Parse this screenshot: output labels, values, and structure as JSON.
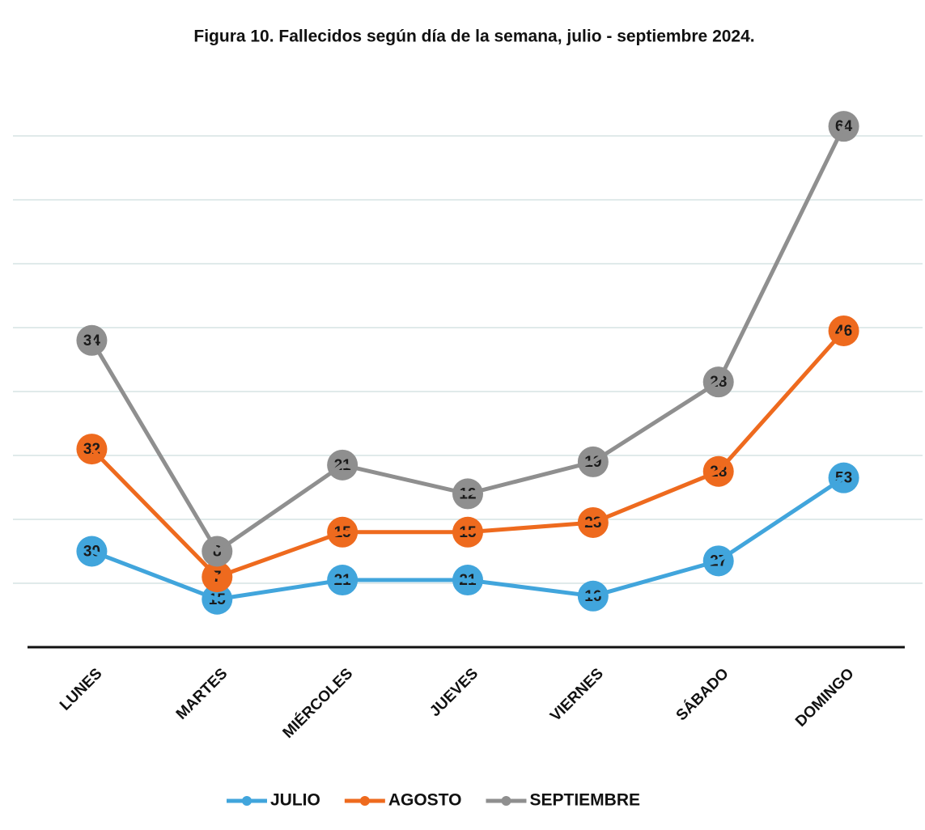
{
  "chart_data": {
    "type": "line",
    "stacked": true,
    "title": "Figura 10. Fallecidos según día de la semana, julio - septiembre 2024.",
    "categories": [
      "LUNES",
      "MARTES",
      "MIÉRCOLES",
      "JUEVES",
      "VIERNES",
      "SÁBADO",
      "DOMINGO"
    ],
    "series": [
      {
        "name": "JULIO",
        "color": "#41a5dc",
        "values": [
          30,
          15,
          21,
          21,
          16,
          27,
          53
        ]
      },
      {
        "name": "AGOSTO",
        "color": "#ee6a1e",
        "values": [
          32,
          7,
          15,
          15,
          23,
          28,
          46
        ]
      },
      {
        "name": "SEPTIEMBRE",
        "color": "#8f8f8f",
        "values": [
          34,
          8,
          21,
          12,
          19,
          28,
          64
        ]
      }
    ],
    "ylim": [
      0,
      180
    ],
    "yticks": [
      0,
      20,
      40,
      60,
      80,
      100,
      120,
      140,
      160
    ],
    "grid": true,
    "legend": "bottom"
  }
}
